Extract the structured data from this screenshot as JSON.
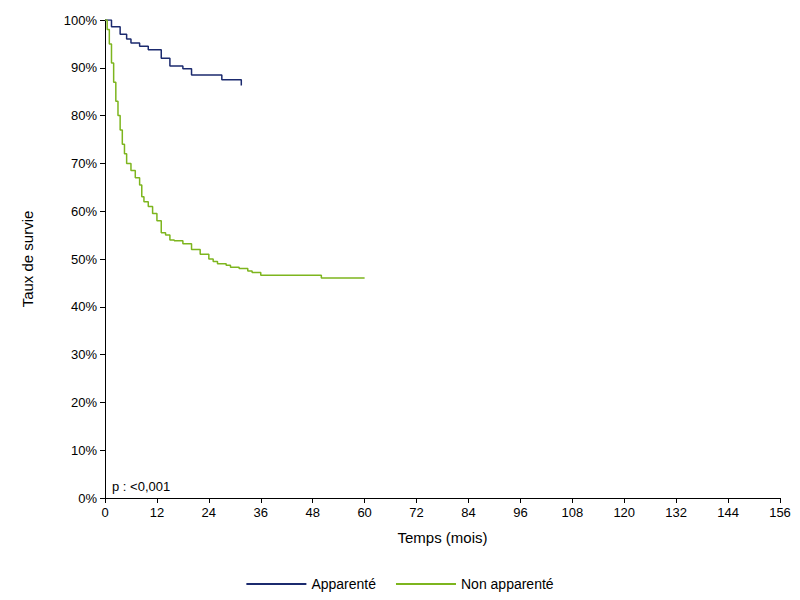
{
  "chart_data": {
    "type": "step",
    "x_label": "Temps (mois)",
    "y_label": "Taux de survie",
    "annotation": "p : <0,001",
    "xlim": [
      0,
      156
    ],
    "xticks": [
      0,
      12,
      24,
      36,
      48,
      60,
      72,
      84,
      96,
      108,
      120,
      132,
      144,
      156
    ],
    "ylim": [
      0,
      100
    ],
    "yticks": [
      {
        "value": 0,
        "label": "0%"
      },
      {
        "value": 10,
        "label": "10%"
      },
      {
        "value": 20,
        "label": "20%"
      },
      {
        "value": 30,
        "label": "30%"
      },
      {
        "value": 40,
        "label": "40%"
      },
      {
        "value": 50,
        "label": "50%"
      },
      {
        "value": 60,
        "label": "60%"
      },
      {
        "value": 70,
        "label": "70%"
      },
      {
        "value": 80,
        "label": "80%"
      },
      {
        "value": 90,
        "label": "90%"
      },
      {
        "value": 100,
        "label": "100%"
      }
    ],
    "grid": false,
    "legend": "bottom",
    "series": [
      {
        "name": "Apparenté",
        "color": "#1b2a6e",
        "line_style": "solid",
        "x": [
          0,
          1.5,
          3.5,
          5,
          6,
          8,
          10,
          13,
          15,
          18,
          20,
          27,
          31.5
        ],
        "values": [
          100,
          98.6,
          97,
          96,
          95.2,
          94.5,
          93.8,
          92,
          90.4,
          89.8,
          88.5,
          87.5,
          86.3
        ]
      },
      {
        "name": "Non apparenté",
        "color": "#7db51e",
        "line_style": "solid",
        "x": [
          0,
          0.5,
          1,
          1.5,
          2,
          2.5,
          3,
          3.5,
          4,
          4.5,
          5,
          6,
          7,
          8,
          8.5,
          9,
          10,
          11,
          12,
          13,
          14,
          15,
          16,
          18,
          20,
          22,
          24,
          25,
          26,
          28,
          29,
          31,
          33,
          34,
          36,
          48,
          50,
          60
        ],
        "values": [
          100,
          98,
          95,
          91,
          87,
          83,
          80,
          77,
          74,
          72,
          70,
          68.5,
          67,
          65.5,
          63,
          62,
          61,
          59.5,
          58,
          55.5,
          55,
          54,
          53.8,
          53.2,
          52,
          51,
          50,
          49.5,
          49,
          48.7,
          48.3,
          48,
          47.5,
          47.2,
          46.6,
          46.6,
          46,
          46
        ]
      }
    ]
  }
}
